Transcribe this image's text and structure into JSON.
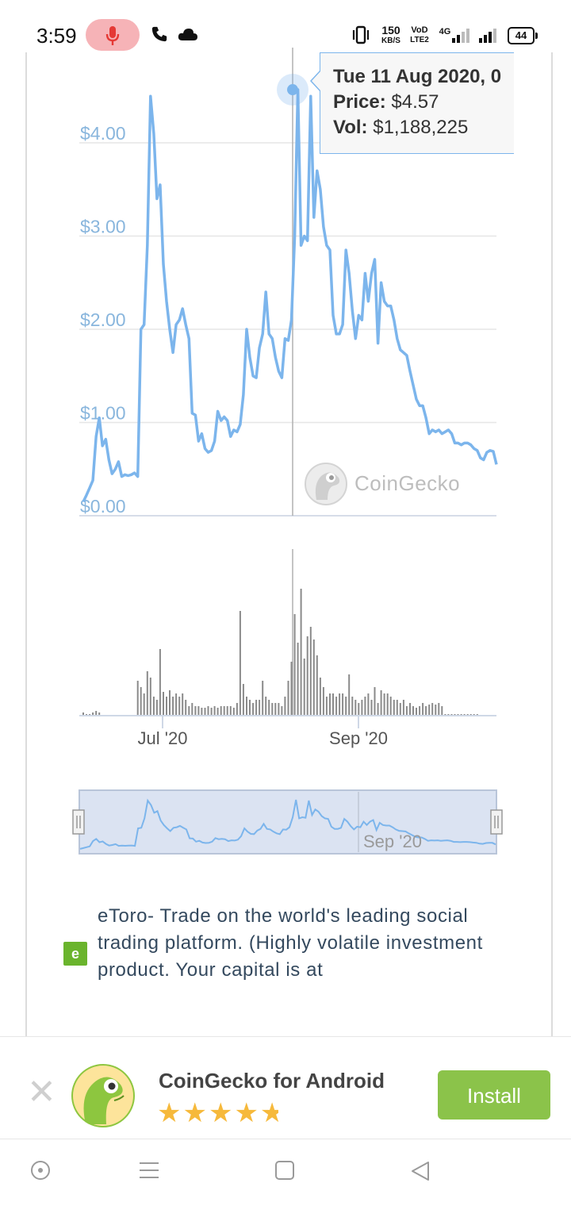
{
  "status_bar": {
    "time": "3:59",
    "net_speed": "150",
    "net_unit": "KB/S",
    "volte_top": "VoD",
    "volte_bottom": "LTE2",
    "network": "4G",
    "battery": "44"
  },
  "tooltip": {
    "date": "Tue 11 Aug 2020, 0",
    "price_label": "Price:",
    "price_value": "$4.57",
    "vol_label": "Vol:",
    "vol_value": "$1,188,225"
  },
  "watermark": {
    "text": "CoinGecko"
  },
  "chart_data": {
    "type": "line",
    "title": "",
    "y_tick_labels": [
      "$4.00",
      "$3.00",
      "$2.00",
      "$1.00",
      "$0.00"
    ],
    "y_ticks": [
      4,
      3,
      2,
      1,
      0
    ],
    "ylim": [
      0,
      4.6
    ],
    "x_tick_labels": [
      "Jul '20",
      "Sep '20"
    ],
    "x_tick_days": [
      0,
      62
    ],
    "navigator_label": "Sep '20",
    "series": [
      {
        "values": [
          0.15,
          0.22,
          0.3,
          0.38,
          0.85,
          1.05,
          0.75,
          0.82,
          0.6,
          0.45,
          0.5,
          0.58,
          0.42,
          0.44,
          0.43,
          0.44,
          0.46,
          0.42,
          2.0,
          2.05,
          2.9,
          4.5,
          4.1,
          3.4,
          3.55,
          2.7,
          2.3,
          2.0,
          1.75,
          2.05,
          2.1,
          2.22,
          2.05,
          1.9,
          1.1,
          1.08,
          0.8,
          0.88,
          0.72,
          0.68,
          0.7,
          0.8,
          1.12,
          1.02,
          1.06,
          1.02,
          0.85,
          0.92,
          0.9,
          0.98,
          1.3,
          2.0,
          1.7,
          1.5,
          1.48,
          1.8,
          1.95,
          2.4,
          1.95,
          1.9,
          1.7,
          1.55,
          1.48,
          1.9,
          1.88,
          2.1,
          3.0,
          4.57,
          2.9,
          3.0,
          2.95,
          4.5,
          3.2,
          3.7,
          3.5,
          3.1,
          2.9,
          2.85,
          2.15,
          1.95,
          1.95,
          2.05,
          2.85,
          2.6,
          2.2,
          1.9,
          2.15,
          2.1,
          2.6,
          2.3,
          2.6,
          2.75,
          1.85,
          2.5,
          2.3,
          2.25,
          2.25,
          2.1,
          1.9,
          1.78,
          1.75,
          1.72,
          1.55,
          1.4,
          1.25,
          1.18,
          1.18,
          1.05,
          0.88,
          0.92,
          0.9,
          0.92,
          0.88,
          0.9,
          0.92,
          0.88,
          0.78,
          0.78,
          0.76,
          0.78,
          0.78,
          0.76,
          0.72,
          0.7,
          0.62,
          0.6,
          0.68,
          0.7,
          0.69,
          0.55
        ]
      }
    ],
    "volume_values": [
      0.02,
      0.01,
      0.01,
      0.02,
      0.03,
      0.02,
      0.0,
      0.0,
      0.0,
      0.0,
      0.0,
      0.0,
      0.0,
      0.0,
      0.0,
      0.0,
      0.0,
      0.22,
      0.18,
      0.14,
      0.28,
      0.24,
      0.12,
      0.1,
      0.42,
      0.15,
      0.12,
      0.16,
      0.12,
      0.14,
      0.12,
      0.14,
      0.1,
      0.06,
      0.08,
      0.06,
      0.06,
      0.05,
      0.05,
      0.06,
      0.05,
      0.06,
      0.05,
      0.06,
      0.06,
      0.06,
      0.06,
      0.05,
      0.08,
      0.66,
      0.2,
      0.12,
      0.1,
      0.08,
      0.1,
      0.1,
      0.22,
      0.12,
      0.1,
      0.08,
      0.08,
      0.08,
      0.06,
      0.12,
      0.22,
      0.34,
      0.64,
      0.46,
      0.8,
      0.36,
      0.5,
      0.56,
      0.48,
      0.38,
      0.24,
      0.18,
      0.12,
      0.14,
      0.14,
      0.12,
      0.14,
      0.14,
      0.12,
      0.26,
      0.12,
      0.1,
      0.08,
      0.1,
      0.12,
      0.14,
      0.1,
      0.18,
      0.08,
      0.16,
      0.14,
      0.14,
      0.12,
      0.1,
      0.1,
      0.08,
      0.1,
      0.06,
      0.08,
      0.06,
      0.05,
      0.06,
      0.08,
      0.06,
      0.07,
      0.08,
      0.07,
      0.08,
      0.06,
      0.01,
      0.01,
      0.01,
      0.01,
      0.01,
      0.01,
      0.01,
      0.01,
      0.01,
      0.01,
      0.01,
      0.0,
      0.0
    ],
    "highlight_index": 67,
    "colors": {
      "line": "#7cb5ec",
      "volume": "#8a8a8a",
      "grid": "#e6e6e6",
      "axis_label": "#89b6dd",
      "navigator_fill": "#dbe3f2"
    }
  },
  "ad": {
    "text": "eToro- Trade on the world's leading social trading platform. (Highly volatile investment product. Your capital is at",
    "logo": "e"
  },
  "banner": {
    "title": "CoinGecko for Android",
    "stars": "★★★★★",
    "rating": 4.5,
    "install_label": "Install",
    "close_label": "✕"
  }
}
